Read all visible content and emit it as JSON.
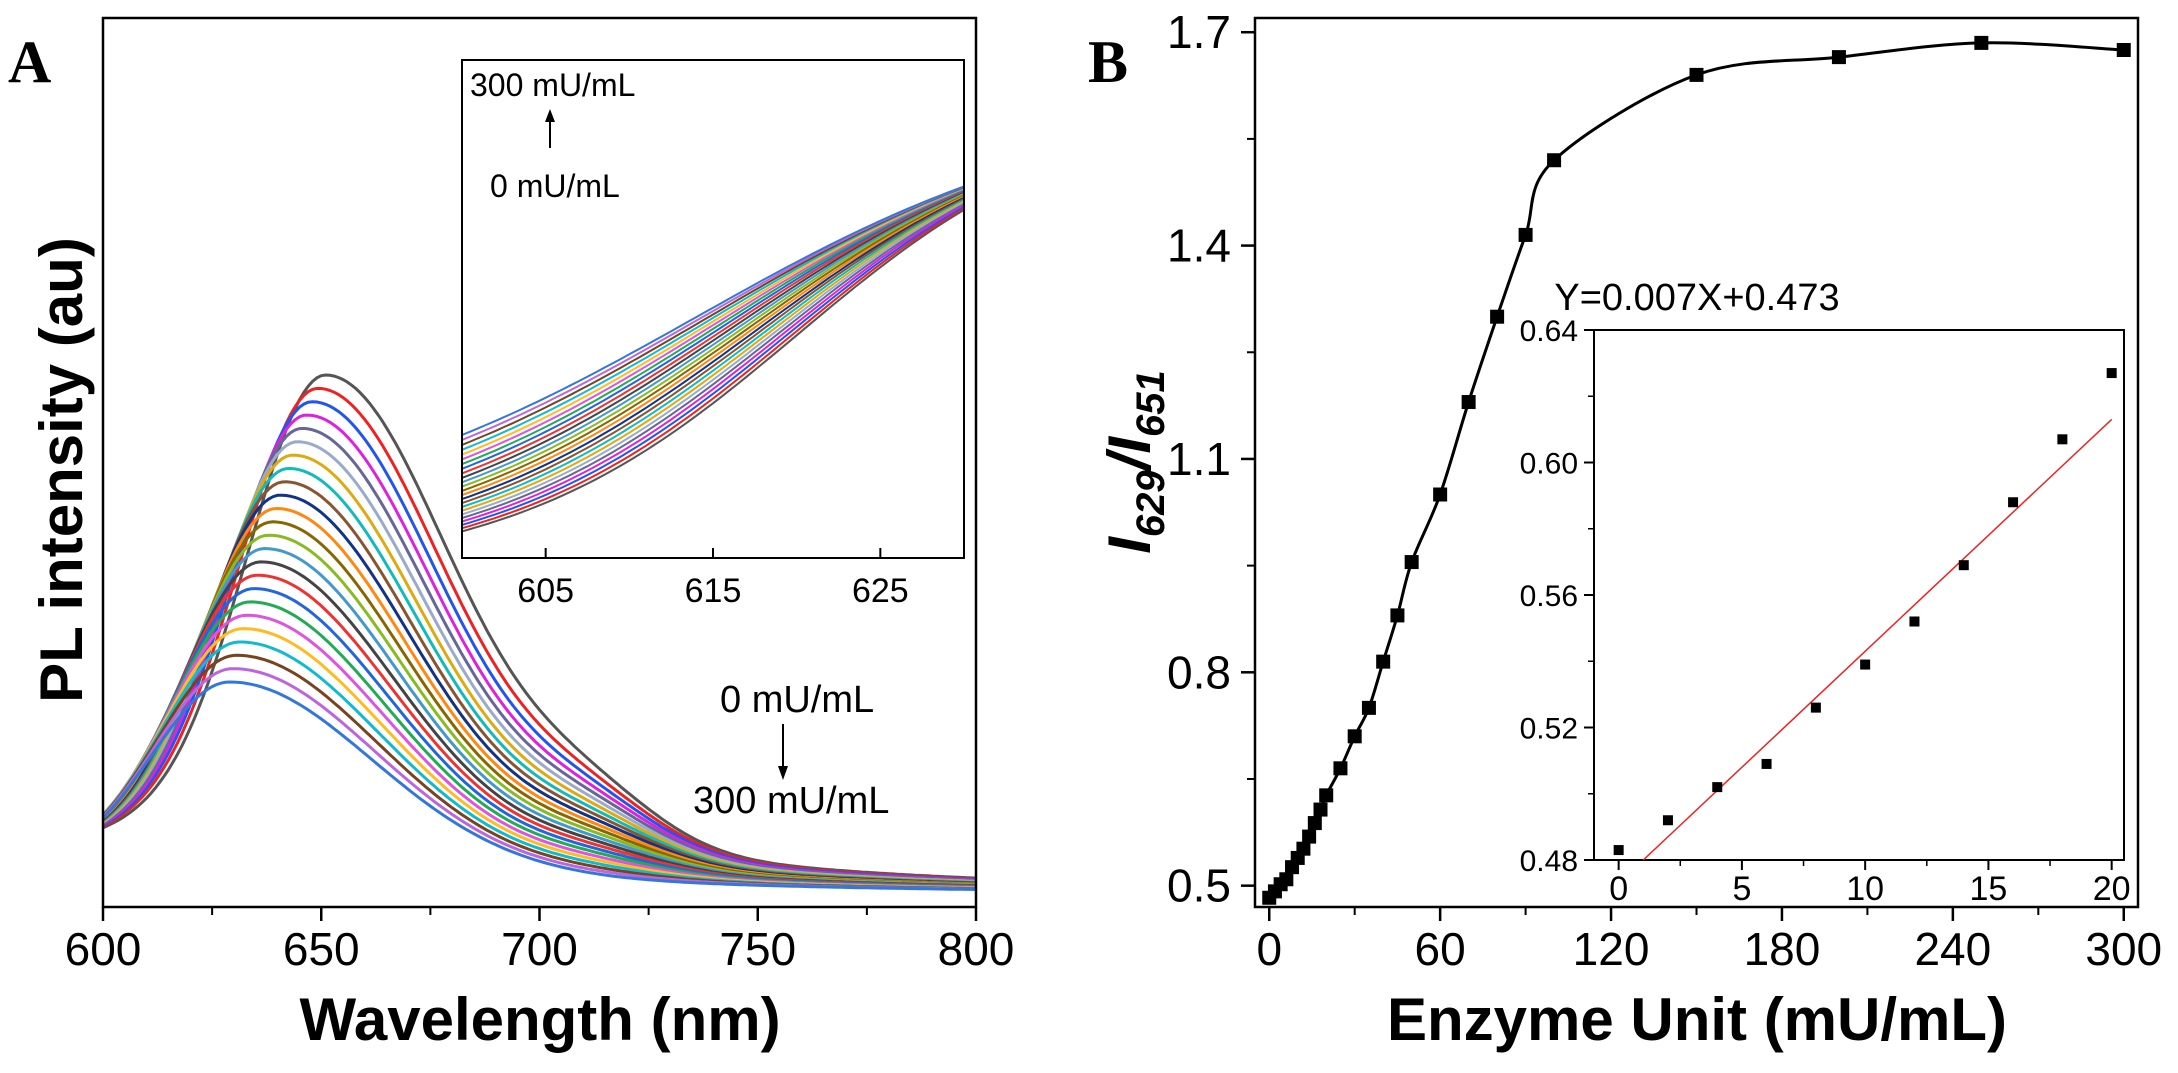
{
  "chart_data": [
    {
      "type": "line",
      "panel": "A",
      "xlabel": "Wavelength (nm)",
      "ylabel": "PL intensity (au)",
      "xlim": [
        600,
        800
      ],
      "xticks": [
        "600",
        "650",
        "700",
        "750",
        "800"
      ],
      "series_count": 24,
      "series_note": "24 emission spectra, enzyme concentration increasing from 0 mU/mL (tallest peak near 651 nm) to 300 mU/mL (lowest, blue-shifted peak near 629 nm)",
      "palette": [
        "#555555",
        "#ee2222",
        "#2255ee",
        "#dd22dd",
        "#666699",
        "#99aacc",
        "#ddaa11",
        "#11bbbb",
        "#885533",
        "#113388",
        "#ff8811",
        "#886600",
        "#88bb22",
        "#4499cc",
        "#444444",
        "#ee3333",
        "#2266dd",
        "#22aa55",
        "#dd55dd",
        "#ffbb22",
        "#11bbcc",
        "#774422",
        "#bb66dd",
        "#3377dd"
      ],
      "annotations": {
        "top": "0 mU/mL",
        "bottom": "300 mU/mL"
      },
      "inset": {
        "xlim": [
          600,
          630
        ],
        "xticks": [
          "605",
          "615",
          "625"
        ],
        "label_top": "300 mU/mL",
        "label_bottom": "0 mU/mL",
        "crossing_x": 627
      }
    },
    {
      "type": "scatter",
      "panel": "B",
      "xlabel": "Enzyme Unit (mU/mL)",
      "ylabel_main": "I",
      "ylabel_sub1": "629",
      "ylabel_slash": "/",
      "ylabel_sub2": "651",
      "xlim": [
        -5,
        305
      ],
      "ylim": [
        0.47,
        1.72
      ],
      "xticks": [
        "0",
        "60",
        "120",
        "180",
        "240",
        "300"
      ],
      "yticks": [
        "0.5",
        "0.8",
        "1.1",
        "1.4",
        "1.7"
      ],
      "points": {
        "x": [
          0,
          2,
          4,
          6,
          8,
          10,
          12,
          14,
          16,
          18,
          20,
          25,
          30,
          35,
          40,
          45,
          50,
          60,
          70,
          80,
          90,
          100,
          150,
          200,
          250,
          300
        ],
        "y": [
          0.483,
          0.492,
          0.502,
          0.509,
          0.526,
          0.539,
          0.552,
          0.569,
          0.588,
          0.607,
          0.627,
          0.665,
          0.71,
          0.75,
          0.815,
          0.88,
          0.955,
          1.05,
          1.18,
          1.3,
          1.415,
          1.52,
          1.64,
          1.665,
          1.685,
          1.675
        ]
      },
      "inset": {
        "equation": "Y=0.007X+0.473",
        "xlim": [
          -1,
          20.5
        ],
        "ylim": [
          0.48,
          0.64
        ],
        "xticks": [
          "0",
          "5",
          "10",
          "15",
          "20"
        ],
        "yticks": [
          "0.48",
          "0.52",
          "0.56",
          "0.60",
          "0.64"
        ],
        "points": {
          "x": [
            0,
            2,
            4,
            6,
            8,
            10,
            12,
            14,
            16,
            18,
            20
          ],
          "y": [
            0.483,
            0.492,
            0.502,
            0.509,
            0.526,
            0.539,
            0.552,
            0.569,
            0.588,
            0.607,
            0.627
          ]
        },
        "fit": {
          "slope": 0.007,
          "intercept": 0.473
        },
        "fit_color": "#ee2222"
      }
    }
  ]
}
